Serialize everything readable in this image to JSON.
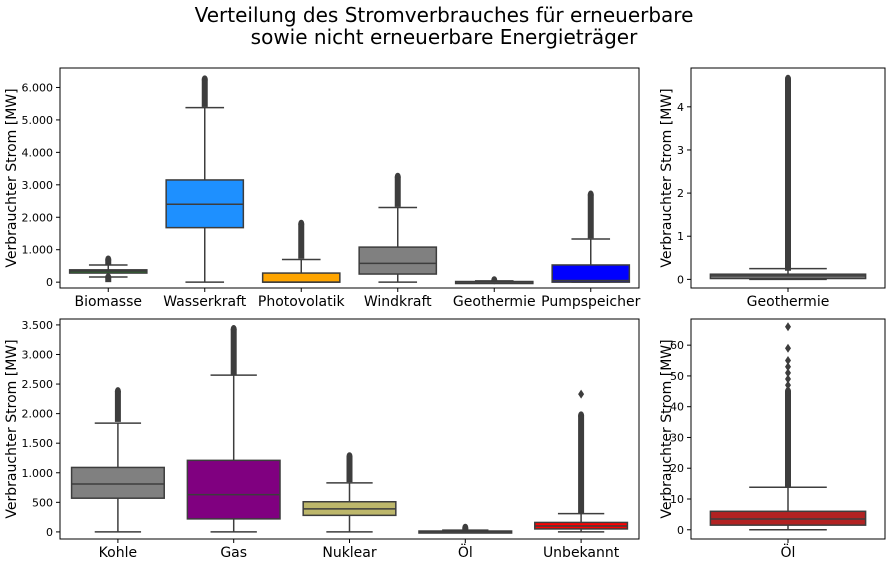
{
  "figure": {
    "title_line1": "Verteilung des Stromverbrauches für erneuerbare",
    "title_line2": "sowie nicht erneuerbare Energieträger"
  },
  "chart_data": [
    {
      "type": "box",
      "ylabel": "Verbrauchter Strom [MW]",
      "ylim": [
        -180,
        6600
      ],
      "yticks": [
        0,
        1000,
        2000,
        3000,
        4000,
        5000,
        6000
      ],
      "ytick_labels": [
        "0",
        "1.000",
        "2.000",
        "3.000",
        "4.000",
        "5.000",
        "6.000"
      ],
      "categories": [
        "Biomasse",
        "Wasserkraft",
        "Photovolatik",
        "Windkraft",
        "Geothermie",
        "Pumpspeicher"
      ],
      "boxes": [
        {
          "color": "#228B22",
          "whislo": 160,
          "q1": 280,
          "med": 340,
          "q3": 380,
          "whishi": 530,
          "flier_lo": [
            0,
            150
          ],
          "flier_hi": [
            540,
            700
          ]
        },
        {
          "color": "#1E90FF",
          "whislo": 0,
          "q1": 1680,
          "med": 2400,
          "q3": 3150,
          "whishi": 5380,
          "flier_lo": null,
          "flier_hi": [
            5400,
            6250
          ]
        },
        {
          "color": "#FFA500",
          "whislo": 0,
          "q1": 0,
          "med": 0,
          "q3": 280,
          "whishi": 700,
          "flier_lo": null,
          "flier_hi": [
            720,
            1800
          ]
        },
        {
          "color": "#808080",
          "whislo": 0,
          "q1": 250,
          "med": 580,
          "q3": 1080,
          "whishi": 2300,
          "flier_lo": null,
          "flier_hi": [
            2320,
            3250
          ]
        },
        {
          "color": "#808080",
          "whislo": 0,
          "q1": 0,
          "med": 5,
          "q3": 20,
          "whishi": 40,
          "flier_lo": null,
          "flier_hi": [
            -40,
            60
          ]
        },
        {
          "color": "#0000FF",
          "whislo": 0,
          "q1": 0,
          "med": 50,
          "q3": 530,
          "whishi": 1330,
          "flier_lo": null,
          "flier_hi": [
            1350,
            2700
          ]
        }
      ]
    },
    {
      "type": "box",
      "ylabel": "Verbrauchter Strom [MW]",
      "ylim": [
        -0.2,
        4.9
      ],
      "yticks": [
        0,
        1,
        2,
        3,
        4
      ],
      "ytick_labels": [
        "0",
        "1",
        "2",
        "3",
        "4"
      ],
      "categories": [
        "Geothermie"
      ],
      "boxes": [
        {
          "color": "#808080",
          "whislo": 0,
          "q1": 0.02,
          "med": 0.08,
          "q3": 0.12,
          "whishi": 0.25,
          "flier_lo": null,
          "flier_hi": [
            0.2,
            4.65
          ]
        }
      ]
    },
    {
      "type": "box",
      "ylabel": "Verbrauchter Strom [MW]",
      "ylim": [
        -120,
        3600
      ],
      "yticks": [
        0,
        500,
        1000,
        1500,
        2000,
        2500,
        3000,
        3500
      ],
      "ytick_labels": [
        "0",
        "500",
        "1.000",
        "1.500",
        "2.000",
        "2.500",
        "3.000",
        "3.500"
      ],
      "categories": [
        "Kohle",
        "Gas",
        "Nuklear",
        "Öl",
        "Unbekannt"
      ],
      "boxes": [
        {
          "color": "#808080",
          "whislo": 0,
          "q1": 570,
          "med": 810,
          "q3": 1090,
          "whishi": 1840,
          "flier_lo": null,
          "flier_hi": [
            1860,
            2380
          ]
        },
        {
          "color": "#800080",
          "whislo": 0,
          "q1": 220,
          "med": 630,
          "q3": 1210,
          "whishi": 2650,
          "flier_lo": null,
          "flier_hi": [
            2660,
            3430
          ]
        },
        {
          "color": "#BDB76B",
          "whislo": 0,
          "q1": 280,
          "med": 390,
          "q3": 510,
          "whishi": 830,
          "flier_lo": null,
          "flier_hi": [
            840,
            1280
          ]
        },
        {
          "color": "#808080",
          "whislo": 0,
          "q1": 0,
          "med": 5,
          "q3": 15,
          "whishi": 30,
          "flier_lo": null,
          "flier_hi": [
            30,
            70
          ]
        },
        {
          "color": "#FF0000",
          "whislo": 0,
          "q1": 50,
          "med": 100,
          "q3": 160,
          "whishi": 310,
          "flier_lo": null,
          "flier_hi": [
            320,
            1970
          ],
          "extra_points": [
            2330
          ]
        }
      ]
    },
    {
      "type": "box",
      "ylabel": "Verbrauchter Strom [MW]",
      "ylim": [
        -3,
        68.5
      ],
      "yticks": [
        0,
        10,
        20,
        30,
        40,
        50,
        60
      ],
      "ytick_labels": [
        "0",
        "10",
        "20",
        "30",
        "40",
        "50",
        "60"
      ],
      "categories": [
        "Öl"
      ],
      "boxes": [
        {
          "color": "#B22222",
          "whislo": 0,
          "q1": 1.5,
          "med": 3.5,
          "q3": 6,
          "whishi": 13.8,
          "flier_lo": null,
          "flier_hi": [
            14,
            45
          ],
          "extra_points": [
            47,
            49,
            51,
            53,
            55,
            59,
            66
          ]
        }
      ]
    }
  ]
}
